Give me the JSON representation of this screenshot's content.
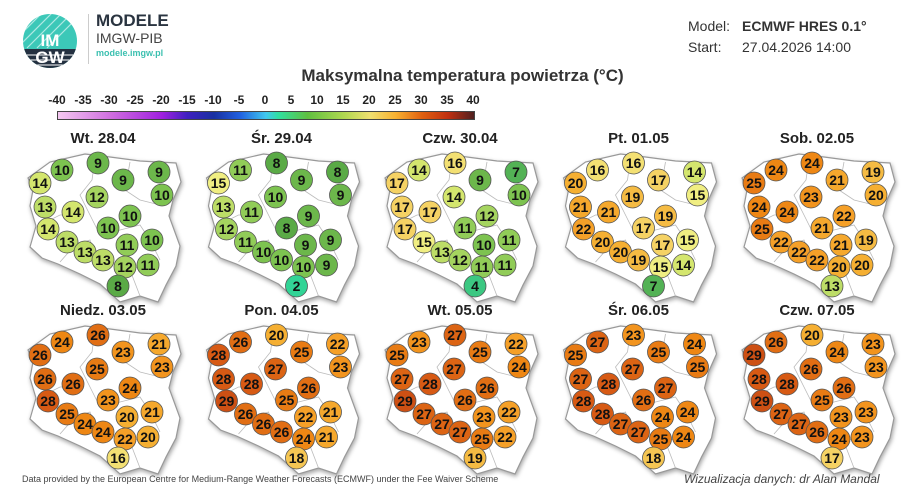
{
  "header": {
    "logo_text": "IMGW",
    "brand_title": "MODELE",
    "brand_subtitle": "IMGW-PIB",
    "brand_url": "modele.imgw.pl",
    "model_label": "Model:",
    "model_value": "ECMWF HRES 0.1°",
    "start_label": "Start:",
    "start_value": "27.04.2026 14:00"
  },
  "title": "Maksymalna temperatura powietrza (°C)",
  "colorbar": {
    "ticks": [
      "-40",
      "-35",
      "-30",
      "-25",
      "-20",
      "-15",
      "-10",
      "-5",
      "0",
      "5",
      "10",
      "15",
      "20",
      "25",
      "30",
      "35",
      "40"
    ],
    "range": [
      -40,
      40
    ]
  },
  "maps": [
    {
      "title": "Wt. 28.04",
      "values": [
        10,
        9,
        9,
        9,
        14,
        12,
        10,
        13,
        14,
        10,
        14,
        10,
        10,
        13,
        11,
        13,
        13,
        12,
        11,
        8
      ]
    },
    {
      "title": "Śr. 29.04",
      "values": [
        11,
        8,
        9,
        8,
        15,
        10,
        9,
        13,
        11,
        9,
        12,
        8,
        9,
        11,
        9,
        10,
        10,
        10,
        9,
        2
      ]
    },
    {
      "title": "Czw. 30.04",
      "values": [
        14,
        16,
        9,
        7,
        17,
        14,
        10,
        17,
        17,
        12,
        17,
        11,
        11,
        15,
        10,
        13,
        12,
        11,
        11,
        4
      ]
    },
    {
      "title": "Pt. 01.05",
      "values": [
        16,
        16,
        17,
        14,
        20,
        19,
        15,
        21,
        21,
        19,
        22,
        17,
        15,
        20,
        17,
        20,
        19,
        15,
        14,
        7
      ]
    },
    {
      "title": "Sob. 02.05",
      "values": [
        24,
        24,
        21,
        19,
        25,
        23,
        20,
        24,
        24,
        22,
        25,
        21,
        19,
        22,
        21,
        22,
        22,
        20,
        20,
        13
      ]
    },
    {
      "title": "Niedz. 03.05",
      "values": [
        24,
        26,
        23,
        21,
        26,
        25,
        23,
        26,
        26,
        24,
        28,
        23,
        21,
        25,
        20,
        24,
        24,
        22,
        20,
        16
      ]
    },
    {
      "title": "Pon. 04.05",
      "values": [
        26,
        20,
        25,
        22,
        28,
        27,
        23,
        28,
        28,
        26,
        29,
        25,
        21,
        26,
        22,
        26,
        26,
        24,
        21,
        18
      ]
    },
    {
      "title": "Wt. 05.05",
      "values": [
        23,
        27,
        25,
        22,
        25,
        27,
        24,
        27,
        28,
        26,
        29,
        26,
        22,
        27,
        23,
        27,
        27,
        25,
        22,
        19
      ]
    },
    {
      "title": "Śr. 06.05",
      "values": [
        27,
        23,
        25,
        24,
        25,
        27,
        25,
        27,
        28,
        27,
        28,
        26,
        24,
        28,
        24,
        27,
        27,
        25,
        24,
        18
      ]
    },
    {
      "title": "Czw. 07.05",
      "values": [
        26,
        20,
        24,
        23,
        29,
        26,
        23,
        28,
        28,
        26,
        29,
        25,
        23,
        27,
        23,
        27,
        26,
        24,
        23,
        17
      ]
    }
  ],
  "footer": {
    "left": "Data provided by the European Centre for Medium-Range Weather Forecasts (ECMWF) under the Fee Waiver Scheme",
    "right": "Wizualizacja danych: dr Alan Mandal"
  }
}
